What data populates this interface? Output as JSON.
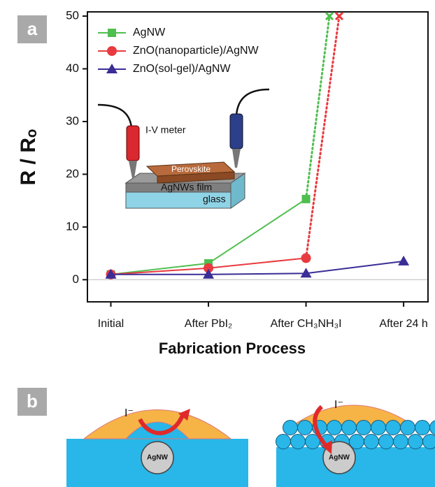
{
  "chart_data": {
    "type": "line",
    "ylabel": "R / Rₒ",
    "xlabel": "Fabrication Process",
    "xlim": [
      -0.24,
      3.25
    ],
    "xticks": [
      {
        "value": 0,
        "label": "Initial"
      },
      {
        "value": 1,
        "label": "After PbI₂"
      },
      {
        "value": 2,
        "label": "After CH₃NH₃I"
      },
      {
        "value": 3,
        "label": "After 24 h"
      }
    ],
    "ylim": [
      -4.2,
      50.8
    ],
    "yticks": [
      0,
      10,
      20,
      30,
      40,
      50
    ],
    "zero_line": true,
    "legend": "upper-left",
    "series": [
      {
        "name": "AgNW",
        "color": "#4fbf4f",
        "x": [
          0,
          1,
          2,
          2.24
        ],
        "values": [
          1,
          3.1,
          15.3,
          50
        ],
        "markers": [
          "square",
          "square",
          "square",
          "x"
        ]
      },
      {
        "name": "ZnO(nanoparticle)/AgNW",
        "color": "#e83a3f",
        "x": [
          0,
          1,
          2,
          2.34
        ],
        "values": [
          1,
          2.2,
          4.1,
          50
        ],
        "markers": [
          "circle",
          "circle",
          "circle",
          "x"
        ]
      },
      {
        "name": "ZnO(sol-gel)/AgNW",
        "color": "#3a2d96",
        "x": [
          0,
          1,
          2,
          3
        ],
        "values": [
          1,
          1,
          1.2,
          3.5
        ],
        "markers": [
          "triangle",
          "triangle",
          "triangle",
          "triangle"
        ]
      }
    ]
  },
  "panel_labels": [
    "a",
    "b"
  ],
  "inset": {
    "meter": "I-V meter",
    "layer": "Perovskite",
    "film": "AgNWs film",
    "substrate": "glass"
  },
  "diagram": {
    "ion": "I⁻",
    "wire_left": "AgNW",
    "wire_right": "AgNW"
  }
}
